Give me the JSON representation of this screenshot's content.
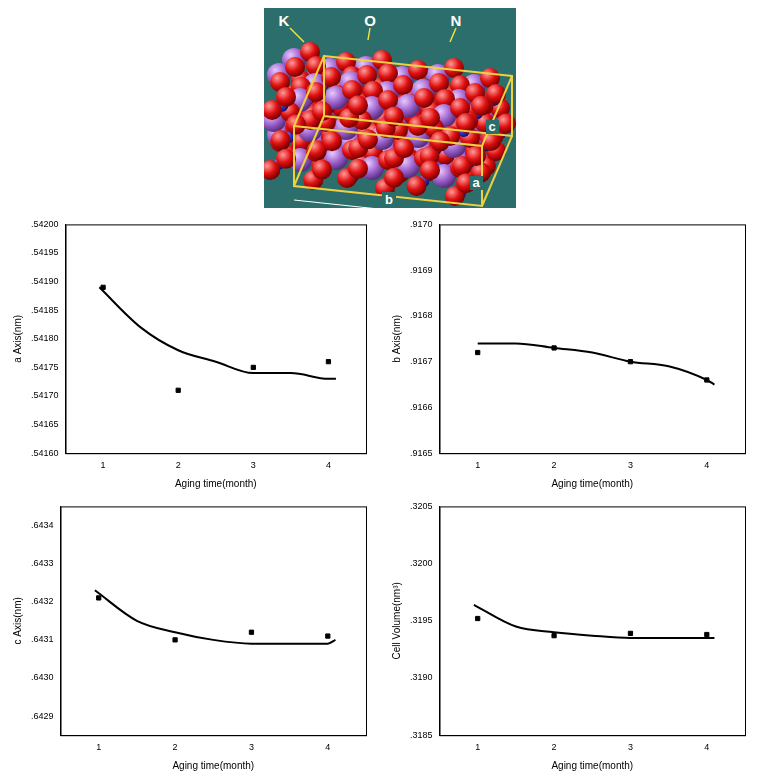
{
  "structure_image": {
    "atom_labels": [
      "K",
      "O",
      "N"
    ],
    "axis_labels": [
      "a",
      "b",
      "c"
    ]
  },
  "chart_data": [
    {
      "type": "scatter",
      "x_label": "Aging time(month)",
      "y_label": "a Axis(nm)",
      "xlim": [
        0.5,
        4.5
      ],
      "xticks": [
        1,
        2,
        3,
        4
      ],
      "ylim": [
        0.5416,
        0.542
      ],
      "yticks": [
        {
          "value": 0.5416,
          "label": ".54160"
        },
        {
          "value": 0.54165,
          "label": ".54165"
        },
        {
          "value": 0.5417,
          "label": ".54170"
        },
        {
          "value": 0.54175,
          "label": ".54175"
        },
        {
          "value": 0.5418,
          "label": ".54180"
        },
        {
          "value": 0.54185,
          "label": ".54185"
        },
        {
          "value": 0.5419,
          "label": ".54190"
        },
        {
          "value": 0.54195,
          "label": ".54195"
        },
        {
          "value": 0.542,
          "label": ".54200"
        }
      ],
      "grid": false,
      "series": [
        {
          "type": "scatter",
          "marker": "square",
          "color": "#000000",
          "x": [
            1,
            2,
            3,
            4
          ],
          "values": [
            0.54189,
            0.54171,
            0.54175,
            0.54176
          ]
        },
        {
          "type": "line",
          "marker": "none",
          "line_style": "solid",
          "color": "#000000",
          "x": [
            0.95,
            1.5,
            2,
            2.5,
            3,
            3.5,
            4,
            4.1
          ],
          "values": [
            0.54189,
            0.54182,
            0.54178,
            0.54176,
            0.54174,
            0.54174,
            0.54173,
            0.54173
          ]
        }
      ]
    },
    {
      "type": "scatter",
      "x_label": "Aging time(month)",
      "y_label": "b Axis(nm)",
      "xlim": [
        0.5,
        4.5
      ],
      "xticks": [
        1,
        2,
        3,
        4
      ],
      "ylim": [
        0.9165,
        0.917
      ],
      "yticks": [
        {
          "value": 0.9165,
          "label": ".9165"
        },
        {
          "value": 0.9166,
          "label": ".9166"
        },
        {
          "value": 0.9167,
          "label": ".9167"
        },
        {
          "value": 0.9168,
          "label": ".9168"
        },
        {
          "value": 0.9169,
          "label": ".9169"
        },
        {
          "value": 0.917,
          "label": ".9170"
        }
      ],
      "grid": false,
      "series": [
        {
          "type": "scatter",
          "marker": "square",
          "color": "#000000",
          "x": [
            1,
            2,
            3,
            4
          ],
          "values": [
            0.91672,
            0.91673,
            0.9167,
            0.91666
          ]
        },
        {
          "type": "line",
          "marker": "none",
          "line_style": "solid",
          "color": "#000000",
          "x": [
            1,
            1.5,
            2,
            2.5,
            3,
            3.5,
            4,
            4.1
          ],
          "values": [
            0.91674,
            0.91674,
            0.91673,
            0.91672,
            0.9167,
            0.91669,
            0.91666,
            0.91665
          ]
        }
      ]
    },
    {
      "type": "scatter",
      "x_label": "Aging time(month)",
      "y_label": "c Axis(nm)",
      "xlim": [
        0.5,
        4.5
      ],
      "xticks": [
        1,
        2,
        3,
        4
      ],
      "ylim": [
        0.64285,
        0.64345
      ],
      "yticks": [
        {
          "value": 0.6429,
          "label": ".6429"
        },
        {
          "value": 0.643,
          "label": ".6430"
        },
        {
          "value": 0.6431,
          "label": ".6431"
        },
        {
          "value": 0.6432,
          "label": ".6432"
        },
        {
          "value": 0.6433,
          "label": ".6433"
        },
        {
          "value": 0.6434,
          "label": ".6434"
        }
      ],
      "grid": false,
      "series": [
        {
          "type": "scatter",
          "marker": "square",
          "color": "#000000",
          "x": [
            1,
            2,
            3,
            4
          ],
          "values": [
            0.64321,
            0.6431,
            0.64312,
            0.64311
          ]
        },
        {
          "type": "line",
          "marker": "none",
          "line_style": "solid",
          "color": "#000000",
          "x": [
            0.95,
            1.5,
            2,
            2.5,
            3,
            3.5,
            4,
            4.1
          ],
          "values": [
            0.64323,
            0.64315,
            0.64312,
            0.6431,
            0.64309,
            0.64309,
            0.64309,
            0.6431
          ]
        }
      ]
    },
    {
      "type": "scatter",
      "x_label": "Aging time(month)",
      "y_label": "Cell Volume(nm³)",
      "xlim": [
        0.5,
        4.5
      ],
      "xticks": [
        1,
        2,
        3,
        4
      ],
      "ylim": [
        0.3185,
        0.3205
      ],
      "yticks": [
        {
          "value": 0.3185,
          "label": ".3185"
        },
        {
          "value": 0.319,
          "label": ".3190"
        },
        {
          "value": 0.3195,
          "label": ".3195"
        },
        {
          "value": 0.32,
          "label": ".3200"
        },
        {
          "value": 0.3205,
          "label": ".3205"
        }
      ],
      "grid": false,
      "series": [
        {
          "type": "scatter",
          "marker": "square",
          "color": "#000000",
          "x": [
            1,
            2,
            3,
            4
          ],
          "values": [
            0.31952,
            0.31937,
            0.31939,
            0.31938
          ]
        },
        {
          "type": "line",
          "marker": "none",
          "line_style": "solid",
          "color": "#000000",
          "x": [
            0.95,
            1.5,
            2,
            2.5,
            3,
            3.5,
            4,
            4.1
          ],
          "values": [
            0.31964,
            0.31945,
            0.3194,
            0.31937,
            0.31935,
            0.31935,
            0.31935,
            0.31935
          ]
        }
      ]
    }
  ]
}
